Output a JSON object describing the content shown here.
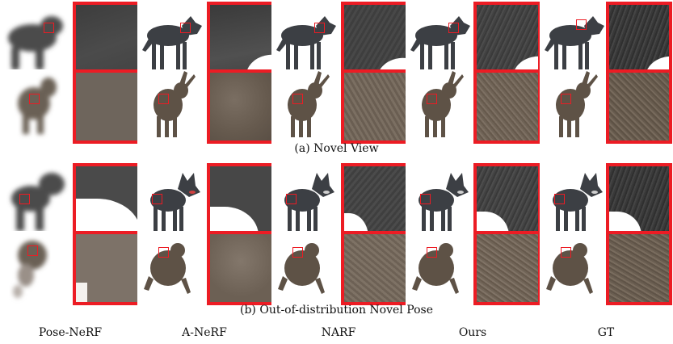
{
  "figure": {
    "captions": {
      "novel_view": "(a) Novel View",
      "novel_pose": "(b) Out-of-distribution Novel Pose"
    },
    "methods": [
      "Pose-NeRF",
      "A-NeRF",
      "NARF",
      "Ours",
      "GT"
    ],
    "subjects": [
      "wolf",
      "rabbit"
    ],
    "colors": {
      "zoom_border": "#ec1c24",
      "wolf_fur": "#3c3f44",
      "rabbit_fur": "#5e5246"
    }
  }
}
